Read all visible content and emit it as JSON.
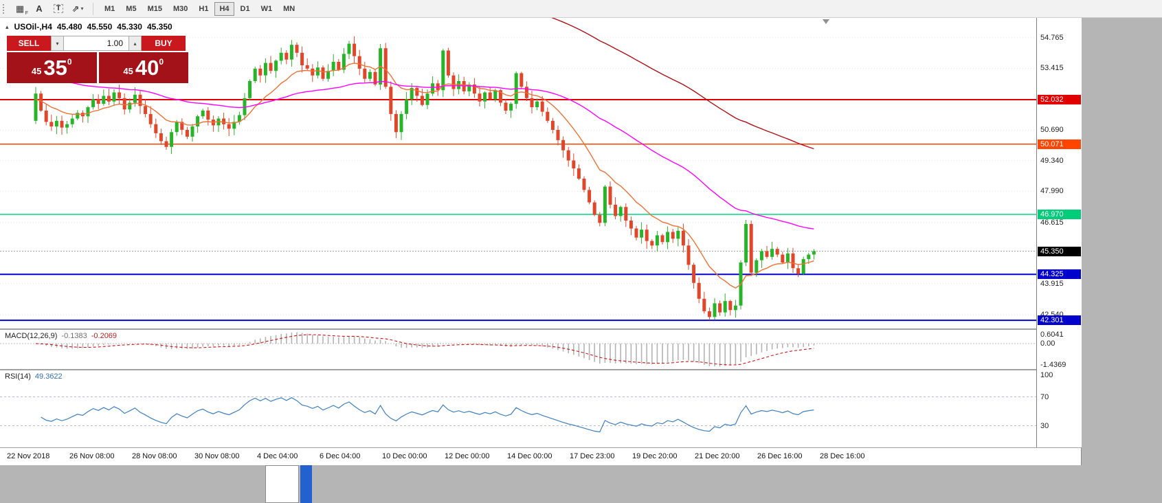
{
  "toolbar": {
    "icons": [
      {
        "name": "grid-icon",
        "glyph": "▦",
        "badge": "F"
      },
      {
        "name": "text-label-icon",
        "glyph": "A"
      },
      {
        "name": "text-box-icon",
        "glyph": "T"
      },
      {
        "name": "cursor-mode-icon",
        "glyph": "⇗"
      },
      {
        "name": "dropdown-chevron-icon",
        "glyph": "▾"
      }
    ],
    "timeframes": [
      "M1",
      "M5",
      "M15",
      "M30",
      "H1",
      "H4",
      "D1",
      "W1",
      "MN"
    ],
    "active_timeframe": "H4"
  },
  "chart": {
    "symbol_tf": "USOil-,H4",
    "open": "45.480",
    "high": "45.550",
    "low": "45.330",
    "close": "45.350",
    "collapse_glyph": "▴"
  },
  "one_click": {
    "sell_label": "SELL",
    "buy_label": "BUY",
    "volume": "1.00",
    "spin_down": "▾",
    "spin_up": "▴",
    "sell": {
      "prefix": "45",
      "big": "35",
      "sup": "0"
    },
    "buy": {
      "prefix": "45",
      "big": "40",
      "sup": "0"
    }
  },
  "price_axis": {
    "markers": [
      {
        "name": "resistance-line-marker",
        "text": "52.032",
        "price": 52.032,
        "color": "#e00000"
      },
      {
        "name": "support-line-marker",
        "text": "50.071",
        "price": 50.071,
        "color": "#ff4500"
      },
      {
        "name": "green-level-marker",
        "text": "46.970",
        "price": 46.97,
        "color": "#00cc7a"
      },
      {
        "name": "current-price-marker",
        "text": "45.350",
        "price": 45.35,
        "color": "#000000"
      },
      {
        "name": "blue-level-marker",
        "text": "44.325",
        "price": 44.325,
        "color": "#0202cc"
      },
      {
        "name": "blue-level-marker-2",
        "text": "42.301",
        "price": 42.301,
        "color": "#0202cc"
      }
    ]
  },
  "macd_panel": {
    "name": "MACD(12,26,9)",
    "value_main": "-0.1383",
    "value_signal": "-0.2069",
    "axis": [
      "0.6041",
      "0.00",
      "-1.4369"
    ]
  },
  "rsi_panel": {
    "name": "RSI(14)",
    "value": "49.3622",
    "axis": [
      "100",
      "70",
      "30"
    ]
  },
  "chart_data": {
    "type": "candlestick",
    "symbol": "USOil-",
    "timeframe": "H4",
    "title": "USOil-,H4 45.480 45.550 45.330 45.350",
    "x_labels": [
      "22 Nov 2018",
      "26 Nov 08:00",
      "28 Nov 08:00",
      "30 Nov 08:00",
      "4 Dec 04:00",
      "6 Dec 04:00",
      "10 Dec 00:00",
      "12 Dec 00:00",
      "14 Dec 00:00",
      "17 Dec 23:00",
      "19 Dec 20:00",
      "21 Dec 20:00",
      "26 Dec 16:00",
      "28 Dec 16:00"
    ],
    "y_range": [
      41.9,
      55.64
    ],
    "grid_prices": [
      54.765,
      53.415,
      50.69,
      49.34,
      47.99,
      46.615,
      43.915,
      42.54
    ],
    "current_price": 45.35,
    "up_color": "#28b428",
    "down_color": "#e0472a",
    "open_seed": 51.1,
    "closes": [
      52.3,
      51.55,
      51.05,
      50.85,
      51.1,
      50.8,
      50.95,
      51.2,
      51.45,
      51.3,
      51.7,
      52.05,
      51.85,
      52.2,
      51.95,
      52.35,
      52.1,
      51.6,
      51.9,
      52.25,
      51.75,
      51.4,
      50.95,
      50.55,
      50.2,
      49.95,
      50.6,
      51.05,
      50.7,
      50.4,
      50.85,
      51.3,
      51.55,
      51.15,
      50.9,
      51.2,
      50.95,
      50.75,
      51.05,
      51.35,
      52.1,
      52.85,
      53.4,
      53.1,
      53.65,
      53.3,
      53.75,
      54.1,
      53.8,
      54.45,
      54.1,
      53.55,
      53.4,
      53.1,
      53.45,
      52.95,
      53.3,
      53.7,
      53.35,
      54.05,
      54.5,
      53.95,
      53.4,
      52.95,
      53.25,
      52.7,
      54.3,
      52.6,
      51.4,
      50.6,
      51.4,
      52.05,
      52.55,
      52.2,
      51.8,
      52.3,
      52.75,
      52.45,
      54.2,
      53.1,
      52.5,
      52.85,
      52.4,
      52.7,
      52.3,
      51.95,
      52.35,
      52.05,
      52.45,
      51.9,
      51.55,
      51.85,
      53.2,
      52.6,
      52.1,
      51.7,
      51.95,
      51.5,
      51.1,
      50.7,
      50.25,
      49.8,
      49.35,
      49.0,
      48.55,
      48.05,
      47.5,
      46.95,
      46.6,
      48.2,
      47.4,
      46.9,
      47.3,
      46.7,
      46.35,
      45.95,
      46.3,
      45.8,
      45.6,
      46.05,
      45.75,
      46.2,
      45.9,
      46.25,
      45.6,
      44.75,
      43.95,
      43.25,
      42.7,
      42.45,
      43.05,
      42.65,
      43.15,
      42.75,
      42.95,
      44.85,
      46.55,
      44.4,
      44.95,
      45.35,
      45.1,
      45.45,
      45.2,
      44.85,
      45.25,
      44.6,
      44.35,
      45.0,
      45.2,
      45.35
    ],
    "hlines": [
      {
        "price": 52.032,
        "color": "#e00000",
        "width": 2
      },
      {
        "price": 50.071,
        "color": "#ff4500",
        "width": 1.5
      },
      {
        "price": 46.97,
        "color": "#00d884",
        "width": 1.5
      },
      {
        "price": 44.325,
        "color": "#0202cc",
        "width": 2
      },
      {
        "price": 42.301,
        "color": "#0202cc",
        "width": 2
      }
    ],
    "overlays": [
      {
        "name": "ma-fast-orange",
        "period": 13,
        "seed": 52.0,
        "color": "#ef7134"
      },
      {
        "name": "ma-mid-magenta",
        "period": 55,
        "seed": 53.3,
        "color": "#ff00ff"
      },
      {
        "name": "ma-slow-darkred",
        "period": 120,
        "seed": 70.0,
        "color": "#b01116"
      }
    ],
    "indicators": {
      "macd": {
        "fast": 12,
        "slow": 26,
        "signal": 9,
        "hist_color": "#b3b3b3",
        "signal_color": "#cc1111",
        "y_range": [
          -1.4369,
          0.6041
        ]
      },
      "rsi": {
        "period": 14,
        "color": "#3d7fc1",
        "levels": [
          70,
          30
        ],
        "y_range": [
          0,
          100
        ]
      }
    }
  }
}
